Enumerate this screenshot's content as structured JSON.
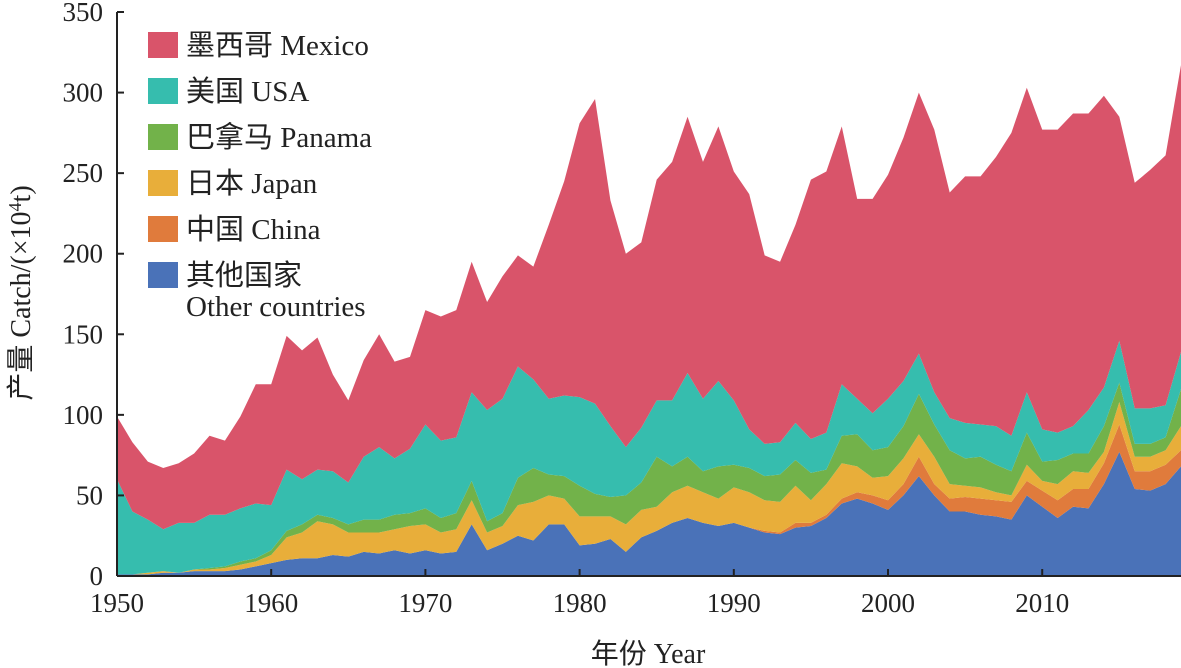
{
  "chart_data": {
    "type": "area",
    "stacked": true,
    "title": "",
    "xlabel": "年份  Year",
    "ylabel": "产量 Catch/(×10",
    "ylabel_sup": "4",
    "ylabel_end": "t)",
    "xlim": [
      1950,
      2019
    ],
    "ylim": [
      0,
      350
    ],
    "x_ticks": [
      1950,
      1960,
      1970,
      1980,
      1990,
      2000,
      2010
    ],
    "y_ticks": [
      0,
      50,
      100,
      150,
      200,
      250,
      300,
      350
    ],
    "legend_position": "top-left",
    "x": [
      1950,
      1951,
      1952,
      1953,
      1954,
      1955,
      1956,
      1957,
      1958,
      1959,
      1960,
      1961,
      1962,
      1963,
      1964,
      1965,
      1966,
      1967,
      1968,
      1969,
      1970,
      1971,
      1972,
      1973,
      1974,
      1975,
      1976,
      1977,
      1978,
      1979,
      1980,
      1981,
      1982,
      1983,
      1984,
      1985,
      1986,
      1987,
      1988,
      1989,
      1990,
      1991,
      1992,
      1993,
      1994,
      1995,
      1996,
      1997,
      1998,
      1999,
      2000,
      2001,
      2002,
      2003,
      2004,
      2005,
      2006,
      2007,
      2008,
      2009,
      2010,
      2011,
      2012,
      2013,
      2014,
      2015,
      2016,
      2017,
      2018,
      2019
    ],
    "series": [
      {
        "name": "其他国家",
        "name_line2": "Other countries",
        "color": "#4a72b8",
        "values": [
          1,
          1,
          1,
          2,
          2,
          3,
          3,
          3,
          4,
          6,
          8,
          10,
          11,
          11,
          13,
          12,
          15,
          14,
          16,
          14,
          16,
          14,
          15,
          32,
          16,
          20,
          25,
          22,
          32,
          32,
          19,
          20,
          23,
          15,
          24,
          28,
          33,
          36,
          33,
          31,
          33,
          30,
          27,
          26,
          30,
          31,
          36,
          45,
          48,
          45,
          41,
          50,
          62,
          50,
          40,
          40,
          38,
          37,
          35,
          50,
          43,
          36,
          43,
          42,
          57,
          77,
          54,
          53,
          57,
          68
        ]
      },
      {
        "name": "中国",
        "name_line2": "China",
        "color": "#e07b3c",
        "values": [
          0,
          0,
          0,
          0,
          0,
          0,
          0,
          0,
          0,
          0,
          0,
          0,
          0,
          0,
          0,
          0,
          0,
          0,
          0,
          0,
          0,
          0,
          0,
          0,
          0,
          0,
          0,
          0,
          0,
          0,
          0,
          0,
          0,
          0,
          0,
          0,
          0,
          0,
          0,
          0,
          0,
          0,
          1,
          1,
          3,
          2,
          2,
          3,
          4,
          5,
          6,
          7,
          12,
          7,
          8,
          9,
          10,
          10,
          11,
          9,
          10,
          11,
          11,
          12,
          13,
          17,
          11,
          12,
          12,
          10
        ]
      },
      {
        "name": "日本",
        "name_line2": "Japan",
        "color": "#e8ae3a",
        "values": [
          0,
          0,
          1,
          1,
          0,
          1,
          1,
          2,
          3,
          3,
          5,
          14,
          16,
          23,
          19,
          15,
          12,
          13,
          13,
          17,
          16,
          13,
          14,
          15,
          11,
          11,
          19,
          24,
          18,
          16,
          18,
          17,
          14,
          17,
          17,
          15,
          19,
          20,
          19,
          17,
          22,
          22,
          19,
          19,
          23,
          14,
          19,
          22,
          16,
          11,
          15,
          16,
          14,
          17,
          9,
          7,
          7,
          5,
          4,
          10,
          6,
          10,
          11,
          10,
          7,
          14,
          9,
          9,
          9,
          15
        ]
      },
      {
        "name": "巴拿马",
        "name_line2": "Panama",
        "color": "#72b24a",
        "values": [
          0,
          0,
          0,
          0,
          0,
          0,
          1,
          1,
          2,
          2,
          3,
          4,
          5,
          4,
          4,
          5,
          8,
          8,
          9,
          8,
          10,
          9,
          10,
          12,
          7,
          8,
          17,
          21,
          13,
          14,
          19,
          14,
          12,
          18,
          17,
          31,
          16,
          18,
          13,
          20,
          14,
          15,
          15,
          17,
          16,
          17,
          9,
          17,
          20,
          17,
          18,
          20,
          25,
          20,
          21,
          17,
          19,
          17,
          15,
          20,
          12,
          15,
          11,
          12,
          16,
          12,
          8,
          8,
          8,
          23
        ]
      },
      {
        "name": "美国",
        "name_line2": "USA",
        "color": "#36bdae",
        "values": [
          59,
          39,
          33,
          26,
          31,
          29,
          33,
          32,
          33,
          34,
          28,
          38,
          28,
          28,
          29,
          26,
          39,
          45,
          35,
          40,
          52,
          48,
          47,
          55,
          69,
          71,
          69,
          55,
          47,
          50,
          55,
          56,
          44,
          30,
          34,
          35,
          41,
          52,
          45,
          53,
          40,
          24,
          20,
          20,
          23,
          21,
          23,
          32,
          22,
          23,
          30,
          28,
          25,
          20,
          20,
          22,
          20,
          24,
          22,
          25,
          20,
          17,
          17,
          27,
          24,
          26,
          22,
          22,
          20,
          23
        ]
      },
      {
        "name": "墨西哥",
        "name_line2": "Mexico",
        "color": "#d9546a",
        "values": [
          39,
          43,
          36,
          38,
          37,
          43,
          49,
          46,
          57,
          74,
          75,
          83,
          80,
          82,
          60,
          51,
          60,
          70,
          60,
          57,
          71,
          77,
          79,
          81,
          67,
          76,
          69,
          70,
          108,
          133,
          170,
          189,
          140,
          120,
          115,
          137,
          148,
          159,
          147,
          158,
          142,
          146,
          117,
          112,
          123,
          161,
          162,
          160,
          124,
          133,
          139,
          151,
          162,
          163,
          140,
          153,
          154,
          167,
          188,
          189,
          186,
          188,
          194,
          184,
          181,
          139,
          140,
          148,
          155,
          178
        ]
      }
    ]
  }
}
